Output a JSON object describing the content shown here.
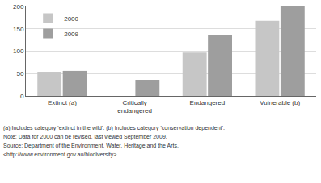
{
  "chart_data": {
    "type": "bar",
    "categories": [
      "Extinct (a)",
      "Critically endangered",
      "Endangered",
      "Vulnerable (b)"
    ],
    "series": [
      {
        "name": "2000",
        "color": "#c6c6c6",
        "values": [
          54,
          null,
          97,
          168
        ]
      },
      {
        "name": "2009",
        "color": "#9e9e9e",
        "values": [
          56,
          36,
          135,
          200
        ]
      }
    ],
    "ylim": [
      0,
      200
    ],
    "yticks": [
      0,
      50,
      100,
      150,
      200
    ],
    "grid": true,
    "legend": "top-left",
    "annotations": [
      "(a) Includes category 'extinct in the wild'. (b) Includes category 'conservation dependent'.",
      "Note: Data for 2000 can be revised, last viewed September 2009.",
      "Source: Department of the Environment, Water, Heritage and the Arts,",
      "<http://www.environment.gov.au/biodiversity>"
    ]
  }
}
